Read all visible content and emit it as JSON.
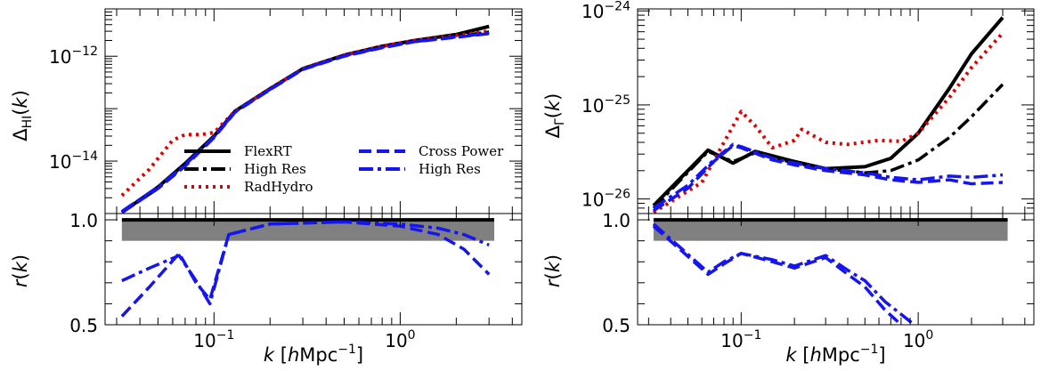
{
  "chart_data": [
    {
      "type": "line",
      "panel": "left",
      "ylabel": "Δ_HI(k)",
      "xlabel": "k [hMpc^-1]",
      "xscale": "log",
      "xlim": [
        0.026,
        4.5
      ],
      "top": {
        "yscale": "log",
        "ylim": [
          1e-15,
          8e-12
        ],
        "yticks": [
          {
            "v": 1e-12,
            "exp": "−12"
          },
          {
            "v": 1e-14,
            "exp": "−14"
          }
        ],
        "series": [
          {
            "name": "FlexRT",
            "color": "#000000",
            "dash": "solid",
            "x": [
              0.032,
              0.05,
              0.07,
              0.1,
              0.13,
              0.2,
              0.3,
              0.5,
              0.8,
              1.2,
              2.0,
              3.0
            ],
            "y": [
              1.05e-15,
              3.2e-15,
              9e-15,
              3e-14,
              9e-14,
              2.4e-13,
              5.8e-13,
              1.05e-12,
              1.55e-12,
              2e-12,
              2.6e-12,
              3.7e-12
            ]
          },
          {
            "name": "High Res",
            "color": "#000000",
            "dash": "dashdot",
            "x": [
              0.032,
              0.05,
              0.07,
              0.1,
              0.13,
              0.2,
              0.3,
              0.5,
              0.8,
              1.2,
              2.0,
              3.0
            ],
            "y": [
              1.05e-15,
              3e-15,
              8.5e-15,
              2.9e-14,
              8.8e-14,
              2.35e-13,
              5.7e-13,
              1.03e-12,
              1.5e-12,
              1.95e-12,
              2.4e-12,
              2.9e-12
            ]
          },
          {
            "name": "RadHydro",
            "color": "#e00000",
            "dash": "dotted",
            "x": [
              0.032,
              0.045,
              0.06,
              0.07,
              0.085,
              0.1,
              0.13,
              0.2,
              0.3,
              0.5,
              0.8,
              1.2,
              2.0,
              3.0
            ],
            "y": [
              2.2e-15,
              7e-15,
              2.5e-14,
              3.2e-14,
              3.2e-14,
              3.5e-14,
              9e-14,
              2.4e-13,
              5.8e-13,
              1.05e-12,
              1.55e-12,
              2e-12,
              2.5e-12,
              3e-12
            ]
          },
          {
            "name": "Cross Power",
            "color": "#1515ee",
            "dash": "dashed",
            "x": [
              0.032,
              0.05,
              0.07,
              0.1,
              0.13,
              0.2,
              0.3,
              0.5,
              0.8,
              1.2,
              2.0,
              3.0
            ],
            "y": [
              1.05e-15,
              3e-15,
              8e-15,
              2.8e-14,
              8.6e-14,
              2.3e-13,
              5.6e-13,
              1e-12,
              1.45e-12,
              1.9e-12,
              2.3e-12,
              2.7e-12
            ]
          },
          {
            "name": "High Res",
            "color": "#1515ee",
            "dash": "dashdot",
            "x": [
              0.032,
              0.05,
              0.07,
              0.1,
              0.13,
              0.2,
              0.3,
              0.5,
              0.8,
              1.2,
              2.0,
              3.0
            ],
            "y": [
              1.1e-15,
              3.2e-15,
              8.5e-15,
              2.9e-14,
              8.8e-14,
              2.35e-13,
              5.7e-13,
              1.02e-12,
              1.48e-12,
              1.9e-12,
              2.35e-12,
              2.75e-12
            ]
          }
        ]
      },
      "bottom": {
        "ylabel": "r(k)",
        "yscale": "linear",
        "ylim": [
          0.5,
          1.03
        ],
        "yticks": [
          {
            "v": 0.5,
            "t": "0.5"
          },
          {
            "v": 1.0,
            "t": "1.0"
          }
        ],
        "band": [
          0.9,
          1.0
        ],
        "series": [
          {
            "name": "FlexRT",
            "color": "#000000",
            "dash": "solid",
            "x": [
              0.032,
              3.2
            ],
            "y": [
              1.0,
              1.0
            ]
          },
          {
            "name": "Cross Power",
            "color": "#1515ee",
            "dash": "dashed",
            "x": [
              0.032,
              0.045,
              0.065,
              0.08,
              0.095,
              0.12,
              0.2,
              0.5,
              1.0,
              1.6,
              2.2,
              3.0
            ],
            "y": [
              0.54,
              0.68,
              0.84,
              0.7,
              0.62,
              0.93,
              0.98,
              0.99,
              0.97,
              0.93,
              0.86,
              0.74
            ]
          },
          {
            "name": "High Res",
            "color": "#1515ee",
            "dash": "dashdot",
            "x": [
              0.032,
              0.045,
              0.065,
              0.08,
              0.095,
              0.12,
              0.2,
              0.5,
              1.0,
              1.6,
              2.2,
              3.0
            ],
            "y": [
              0.71,
              0.77,
              0.83,
              0.71,
              0.6,
              0.93,
              0.98,
              0.99,
              0.98,
              0.96,
              0.93,
              0.88
            ]
          }
        ]
      },
      "xticks": [
        {
          "v": 0.1,
          "exp": "−1"
        },
        {
          "v": 1,
          "exp": "0"
        }
      ],
      "legend": {
        "placement": "lower-right",
        "entries": [
          {
            "label": "FlexRT",
            "color": "#000000",
            "dash": "solid"
          },
          {
            "label": "High Res",
            "color": "#000000",
            "dash": "dashdot"
          },
          {
            "label": "RadHydro",
            "color": "#e00000",
            "dash": "dotted"
          },
          {
            "label": "Cross Power",
            "color": "#1515ee",
            "dash": "dashed"
          },
          {
            "label": "High Res",
            "color": "#1515ee",
            "dash": "dashdot"
          }
        ]
      }
    },
    {
      "type": "line",
      "panel": "right",
      "ylabel": "Δ_Γ(k)",
      "xlabel": "k [hMpc^-1]",
      "xscale": "log",
      "xlim": [
        0.026,
        4.5
      ],
      "top": {
        "yscale": "log",
        "ylim": [
          7e-27,
          1.05e-24
        ],
        "yticks": [
          {
            "v": 1e-24,
            "exp": "−24"
          },
          {
            "v": 1e-25,
            "exp": "−25"
          },
          {
            "v": 1e-26,
            "exp": "−26"
          }
        ],
        "series": [
          {
            "name": "FlexRT",
            "color": "#000000",
            "dash": "solid",
            "x": [
              0.032,
              0.065,
              0.09,
              0.12,
              0.2,
              0.3,
              0.5,
              0.7,
              1.0,
              1.5,
              2.0,
              3.0
            ],
            "y": [
              8.5e-27,
              3.3e-26,
              2.4e-26,
              3.2e-26,
              2.5e-26,
              2.1e-26,
              2.2e-26,
              2.7e-26,
              5e-26,
              1.5e-25,
              3.5e-25,
              8.5e-25
            ]
          },
          {
            "name": "High Res",
            "color": "#000000",
            "dash": "dashdot",
            "x": [
              0.032,
              0.065,
              0.09,
              0.12,
              0.2,
              0.3,
              0.5,
              0.7,
              1.0,
              1.5,
              2.0,
              3.0
            ],
            "y": [
              8e-27,
              3.2e-26,
              2.5e-26,
              3.1e-26,
              2.4e-26,
              2.1e-26,
              1.9e-26,
              2e-26,
              2.6e-26,
              4.5e-26,
              7.5e-26,
              1.65e-25
            ]
          },
          {
            "name": "RadHydro",
            "color": "#e00000",
            "dash": "dotted",
            "x": [
              0.032,
              0.06,
              0.08,
              0.1,
              0.12,
              0.15,
              0.2,
              0.22,
              0.3,
              0.4,
              0.6,
              0.8,
              1.0,
              1.5,
              2.0,
              3.0
            ],
            "y": [
              7.2e-27,
              1.5e-26,
              4e-26,
              8.5e-26,
              6e-26,
              3.5e-26,
              4.2e-26,
              5.5e-26,
              4e-26,
              3.8e-26,
              4.2e-26,
              4.1e-26,
              5e-26,
              1.2e-25,
              2.5e-25,
              5.8e-25
            ]
          },
          {
            "name": "Cross Power",
            "color": "#1515ee",
            "dash": "dashed",
            "x": [
              0.032,
              0.05,
              0.07,
              0.09,
              0.1,
              0.15,
              0.2,
              0.3,
              0.5,
              0.7,
              1.0,
              1.5,
              2.0,
              3.0
            ],
            "y": [
              7.5e-27,
              1.3e-26,
              2.5e-26,
              3.7e-26,
              3.5e-26,
              2.6e-26,
              2.3e-26,
              2e-26,
              1.8e-26,
              1.6e-26,
              1.5e-26,
              1.6e-26,
              1.45e-26,
              1.5e-26
            ]
          },
          {
            "name": "High Res",
            "color": "#1515ee",
            "dash": "dashdot",
            "x": [
              0.032,
              0.05,
              0.07,
              0.09,
              0.1,
              0.15,
              0.2,
              0.3,
              0.5,
              0.7,
              1.0,
              1.5,
              2.0,
              3.0
            ],
            "y": [
              8e-27,
              1.4e-26,
              2.6e-26,
              3.8e-26,
              3.6e-26,
              2.7e-26,
              2.4e-26,
              2.1e-26,
              1.9e-26,
              1.7e-26,
              1.6e-26,
              1.75e-26,
              1.7e-26,
              1.8e-26
            ]
          }
        ]
      },
      "bottom": {
        "ylabel": "r(k)",
        "yscale": "linear",
        "ylim": [
          0.5,
          1.03
        ],
        "yticks": [
          {
            "v": 0.5,
            "t": "0.5"
          },
          {
            "v": 1.0,
            "t": "1.0"
          }
        ],
        "band": [
          0.9,
          1.0
        ],
        "series": [
          {
            "name": "FlexRT",
            "color": "#000000",
            "dash": "solid",
            "x": [
              0.032,
              3.2
            ],
            "y": [
              1.0,
              1.0
            ]
          },
          {
            "name": "Cross Power",
            "color": "#1515ee",
            "dash": "dashed",
            "x": [
              0.032,
              0.045,
              0.065,
              0.08,
              0.1,
              0.15,
              0.2,
              0.3,
              0.4,
              0.5,
              0.65,
              0.8
            ],
            "y": [
              0.97,
              0.86,
              0.74,
              0.79,
              0.84,
              0.8,
              0.77,
              0.82,
              0.74,
              0.68,
              0.57,
              0.5
            ]
          },
          {
            "name": "High Res",
            "color": "#1515ee",
            "dash": "dashdot",
            "x": [
              0.032,
              0.045,
              0.065,
              0.08,
              0.1,
              0.15,
              0.2,
              0.3,
              0.4,
              0.5,
              0.65,
              0.8,
              0.95
            ],
            "y": [
              0.98,
              0.87,
              0.75,
              0.8,
              0.84,
              0.81,
              0.78,
              0.83,
              0.76,
              0.71,
              0.61,
              0.55,
              0.5
            ]
          }
        ]
      },
      "xticks": [
        {
          "v": 0.1,
          "exp": "−1"
        },
        {
          "v": 1,
          "exp": "0"
        }
      ]
    }
  ]
}
